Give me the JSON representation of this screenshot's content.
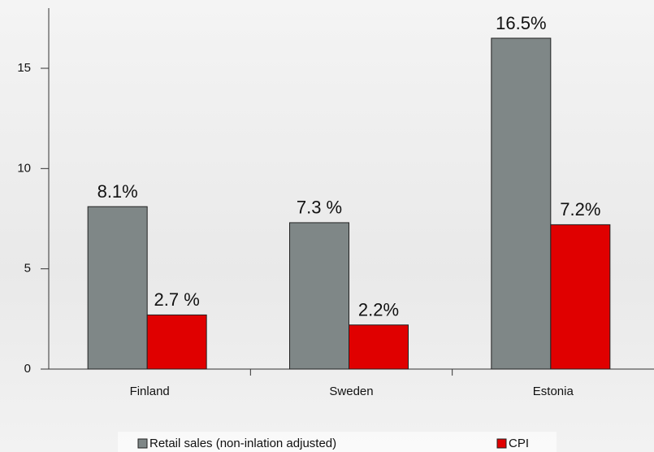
{
  "chart_data": {
    "type": "bar",
    "categories": [
      "Finland",
      "Sweden",
      "Estonia"
    ],
    "series": [
      {
        "name": "Retail sales (non-inlation adjusted)",
        "color": "#7f8787",
        "values": [
          8.1,
          7.3,
          16.5
        ],
        "value_labels": [
          "8.1%",
          "7.3 %",
          "16.5%"
        ]
      },
      {
        "name": "CPI",
        "color": "#e00000",
        "values": [
          2.7,
          2.2,
          7.2
        ],
        "value_labels": [
          "2.7 %",
          "2.2%",
          "7.2%"
        ]
      }
    ],
    "ylim": [
      0,
      18
    ],
    "yticks": [
      0,
      5,
      10,
      15
    ]
  }
}
